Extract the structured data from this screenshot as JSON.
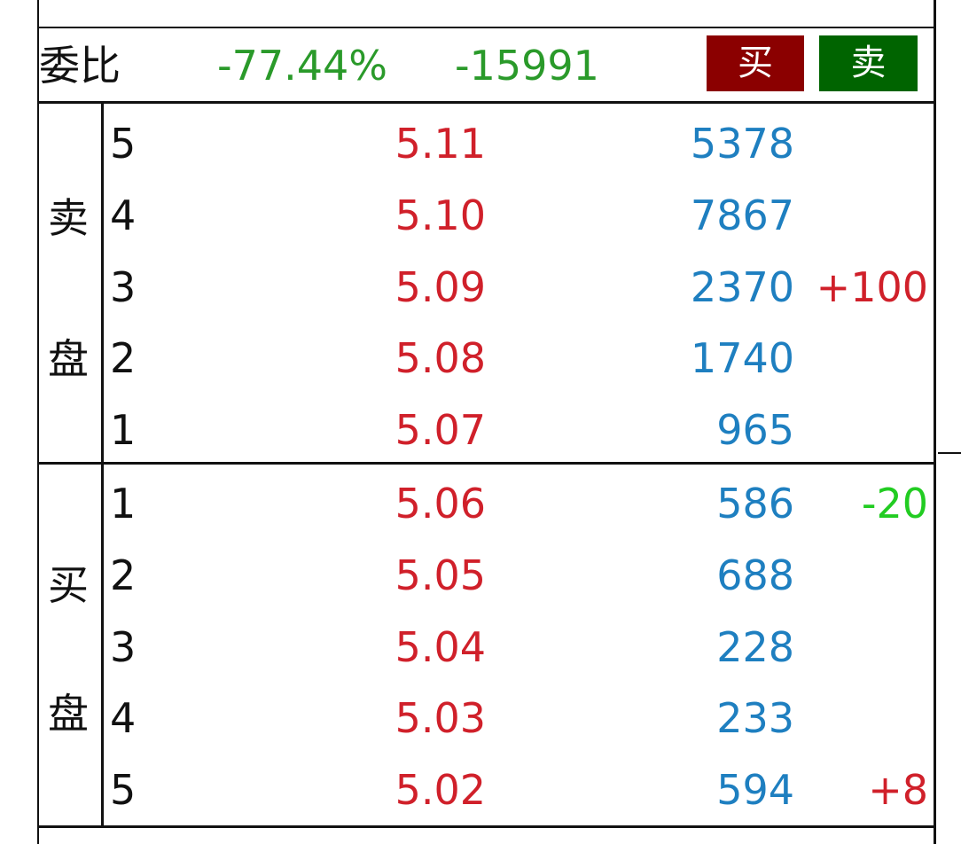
{
  "header": {
    "label": "委比",
    "ratio": "-77.44%",
    "diff": "-15991",
    "buy_button": "买",
    "sell_button": "卖"
  },
  "sell": {
    "label": [
      "卖",
      "盘"
    ],
    "rows": [
      {
        "level": "5",
        "price": "5.11",
        "volume": "5378"
      },
      {
        "level": "4",
        "price": "5.10",
        "volume": "7867"
      },
      {
        "level": "3",
        "price": "5.09",
        "volume": "2370",
        "change": "+100"
      },
      {
        "level": "2",
        "price": "5.08",
        "volume": "1740"
      },
      {
        "level": "1",
        "price": "5.07",
        "volume": "965"
      }
    ]
  },
  "buy": {
    "label": [
      "买",
      "盘"
    ],
    "rows": [
      {
        "level": "1",
        "price": "5.06",
        "volume": "586",
        "change": "-20"
      },
      {
        "level": "2",
        "price": "5.05",
        "volume": "688"
      },
      {
        "level": "3",
        "price": "5.04",
        "volume": "228"
      },
      {
        "level": "4",
        "price": "5.03",
        "volume": "233"
      },
      {
        "level": "5",
        "price": "5.02",
        "volume": "594",
        "change": "+8"
      }
    ]
  }
}
